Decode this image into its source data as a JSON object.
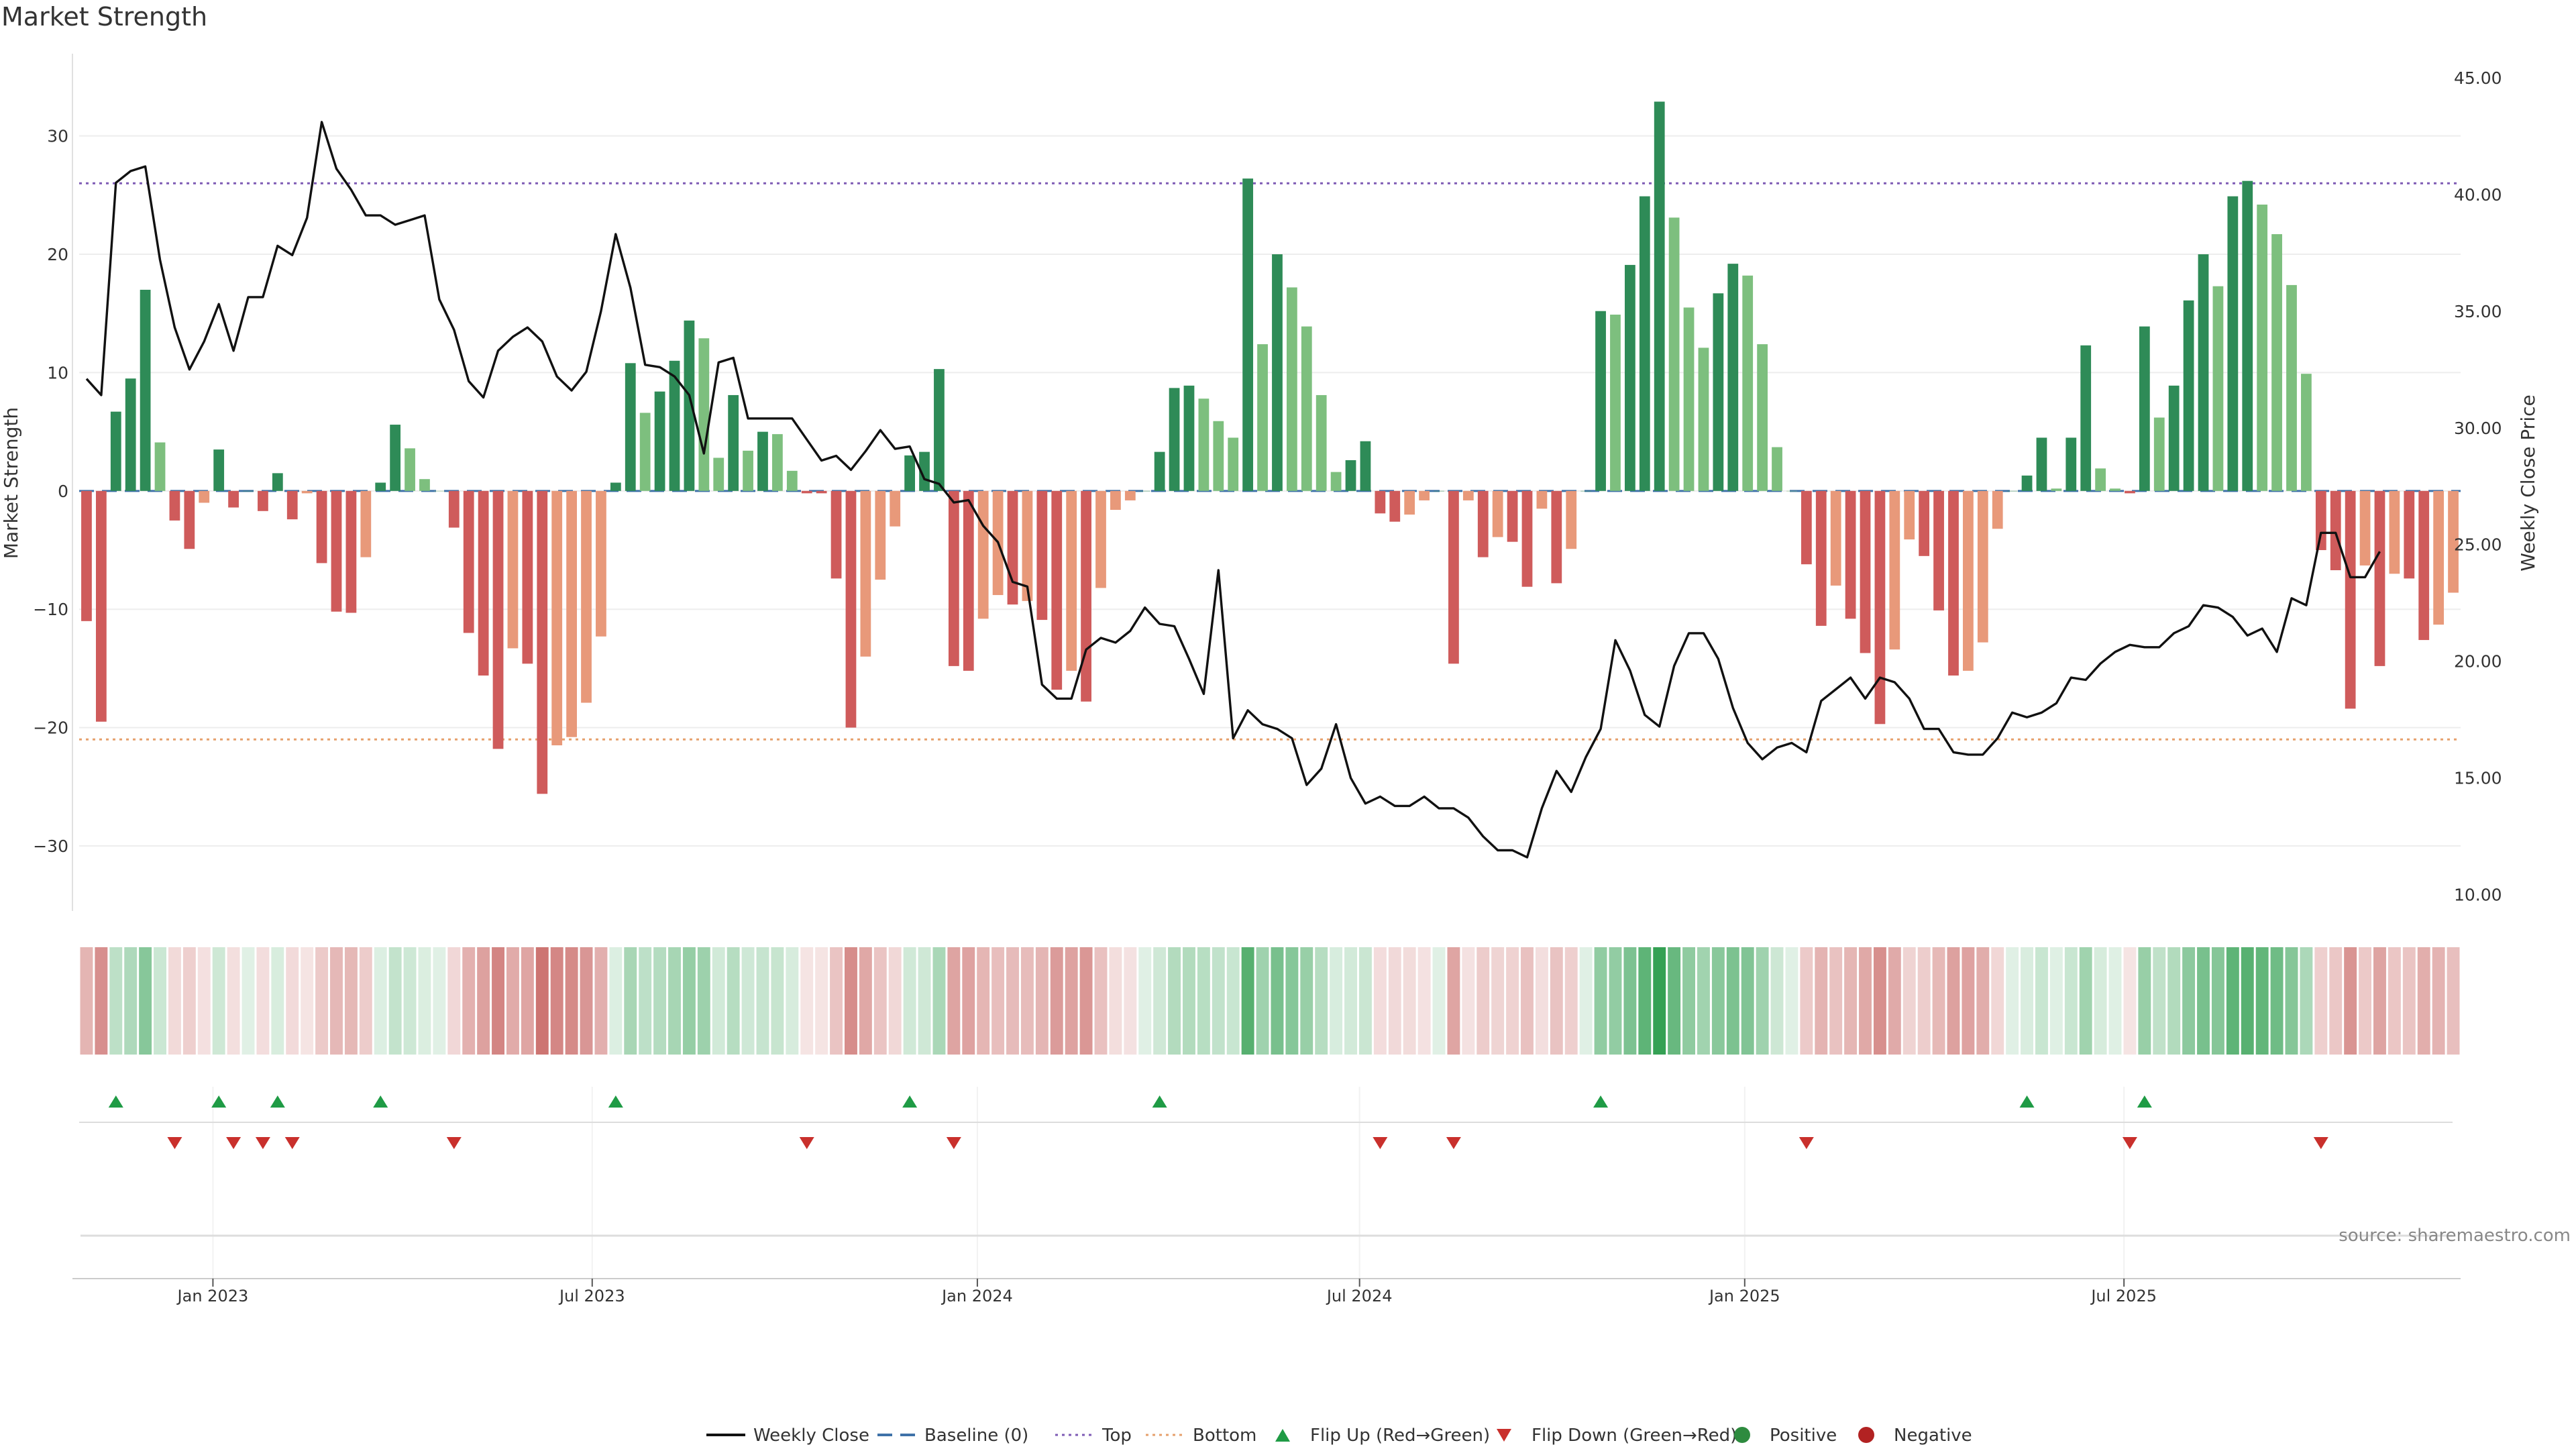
{
  "chart_data": {
    "type": "bar+line",
    "title": "Market Strength",
    "ylabel_left": "Market Strength",
    "ylabel_right": "Weekly Close Price",
    "ylim_left": [
      -35.5,
      36.5
    ],
    "ylim_right": [
      9.3,
      45.8
    ],
    "yticks_left": [
      -30,
      -20,
      -10,
      0,
      10,
      20,
      30
    ],
    "yticks_left_labels": [
      "−30",
      "−20",
      "−10",
      "0",
      "10",
      "20",
      "30"
    ],
    "yticks_right": [
      10,
      15,
      20,
      25,
      30,
      35,
      40,
      45
    ],
    "yticks_right_labels": [
      "10.00",
      "15.00",
      "20.00",
      "25.00",
      "30.00",
      "35.00",
      "40.00",
      "45.00"
    ],
    "x_start": "2022-10-24",
    "x_step_days": 7,
    "xticks": [
      {
        "label": "Jan 2023",
        "week": 9.1
      },
      {
        "label": "Jul 2023",
        "week": 34.9
      },
      {
        "label": "Jan 2024",
        "week": 61.1
      },
      {
        "label": "Jul 2024",
        "week": 87.1
      },
      {
        "label": "Jan 2025",
        "week": 113.3
      },
      {
        "label": "Jul 2025",
        "week": 139.1
      }
    ],
    "top_line": 26,
    "bottom_line": -21,
    "strength": [
      -11,
      -19.5,
      6.7,
      9.5,
      17,
      4.1,
      -2.5,
      -4.9,
      -1,
      3.5,
      -1.4,
      0,
      -1.7,
      1.5,
      -2.4,
      -0.2,
      -6.1,
      -10.2,
      -10.3,
      -5.6,
      0.7,
      5.6,
      3.6,
      1,
      0,
      -3.1,
      -12,
      -15.6,
      -21.8,
      -13.3,
      -14.6,
      -25.6,
      -21.5,
      -20.8,
      -17.9,
      -12.3,
      0.7,
      10.8,
      6.6,
      8.4,
      11,
      14.4,
      12.9,
      2.8,
      8.1,
      3.4,
      5,
      4.8,
      1.7,
      -0.2,
      -0.2,
      -7.4,
      -20,
      -14,
      -7.5,
      -3,
      3,
      3.3,
      10.3,
      -14.8,
      -15.2,
      -10.8,
      -8.8,
      -9.6,
      -9.3,
      -10.9,
      -16.8,
      -15.2,
      -17.8,
      -8.2,
      -1.6,
      -0.8,
      0,
      3.3,
      8.7,
      8.9,
      7.8,
      5.9,
      4.5,
      26.4,
      12.4,
      20,
      17.2,
      13.9,
      8.1,
      1.6,
      2.6,
      4.2,
      -1.9,
      -2.6,
      -2,
      -0.8,
      0,
      -14.6,
      -0.8,
      -5.6,
      -3.9,
      -4.3,
      -8.1,
      -1.5,
      -7.8,
      -4.9,
      0,
      15.2,
      14.9,
      19.1,
      24.9,
      32.9,
      23.1,
      15.5,
      12.1,
      16.7,
      19.2,
      18.2,
      12.4,
      3.7,
      0,
      -6.2,
      -11.4,
      -8,
      -10.8,
      -13.7,
      -19.7,
      -13.4,
      -4.1,
      -5.5,
      -10.1,
      -15.6,
      -15.2,
      -12.8,
      -3.2,
      0,
      1.3,
      4.5,
      0.2,
      4.5,
      12.3,
      1.9,
      0.2,
      -0.2,
      13.9,
      6.2,
      8.9,
      16.1,
      20,
      17.3,
      24.9,
      26.2,
      24.2,
      21.7,
      17.4,
      9.9,
      -5,
      -6.7,
      -18.4,
      -6.3,
      -14.8,
      -7,
      -7.4,
      -12.6,
      -11.3,
      -8.6
    ],
    "close": [
      32.1,
      31.4,
      40.5,
      41,
      41.2,
      37.2,
      34.3,
      32.5,
      33.7,
      35.3,
      33.3,
      35.6,
      35.6,
      37.8,
      37.4,
      39,
      43.1,
      41.1,
      40.2,
      39.1,
      39.1,
      38.7,
      38.9,
      39.1,
      35.5,
      34.2,
      32,
      31.3,
      33.3,
      33.9,
      34.3,
      33.7,
      32.2,
      31.6,
      32.4,
      35,
      38.3,
      36,
      32.7,
      32.6,
      32.2,
      31.4,
      28.9,
      32.8,
      33,
      30.4,
      30.4,
      30.4,
      30.4,
      29.5,
      28.6,
      28.8,
      28.2,
      29,
      29.9,
      29.1,
      29.2,
      27.8,
      27.6,
      26.8,
      26.9,
      25.8,
      25.1,
      23.4,
      23.2,
      19,
      18.4,
      18.4,
      20.5,
      21,
      20.8,
      21.3,
      22.3,
      21.6,
      21.5,
      20.1,
      18.6,
      23.9,
      16.7,
      17.9,
      17.3,
      17.1,
      16.7,
      14.7,
      15.4,
      17.3,
      15,
      13.9,
      14.2,
      13.8,
      13.8,
      14.2,
      13.7,
      13.7,
      13.3,
      12.5,
      11.9,
      11.9,
      11.6,
      13.7,
      15.3,
      14.4,
      15.9,
      17.1,
      20.9,
      19.6,
      17.7,
      17.2,
      19.8,
      21.2,
      21.2,
      20.1,
      18,
      16.5,
      15.8,
      16.3,
      16.5,
      16.1,
      18.3,
      18.8,
      19.3,
      18.4,
      19.3,
      19.1,
      18.4,
      17.1,
      17.1,
      16.1,
      16,
      16,
      16.7,
      17.8,
      17.6,
      17.8,
      18.2,
      19.3,
      19.2,
      19.9,
      20.4,
      20.7,
      20.6,
      20.6,
      21.2,
      21.5,
      22.4,
      22.3,
      21.9,
      21.1,
      21.4,
      20.4,
      22.7,
      22.4,
      25.5,
      25.5,
      23.6,
      23.6,
      24.7
    ]
  },
  "source_text": "source: sharemaestro.com",
  "legend": [
    {
      "label": "Weekly Close",
      "kind": "line",
      "color": "#111111"
    },
    {
      "label": "Baseline (0)",
      "kind": "dash",
      "color": "#3f72a8"
    },
    {
      "label": "Top",
      "kind": "dot",
      "color": "#7e5bb5"
    },
    {
      "label": "Bottom",
      "kind": "dot",
      "color": "#e6a06c"
    },
    {
      "label": "Flip Up (Red→Green)",
      "kind": "tri-up",
      "color": "#1f9b45"
    },
    {
      "label": "Flip Down (Green→Red)",
      "kind": "tri-down",
      "color": "#c9302c"
    },
    {
      "label": "Positive",
      "kind": "circle",
      "color": "#2e8b3f"
    },
    {
      "label": "Negative",
      "kind": "circle",
      "color": "#b22222"
    }
  ],
  "colors": {
    "pos_dark": "#2e8b57",
    "pos_light": "#7dbf7e",
    "neg_dark": "#cf5b5b",
    "neg_light": "#e8997a",
    "flip_up": "#1f9b45",
    "flip_down": "#c9302c",
    "close_line": "#111111"
  }
}
